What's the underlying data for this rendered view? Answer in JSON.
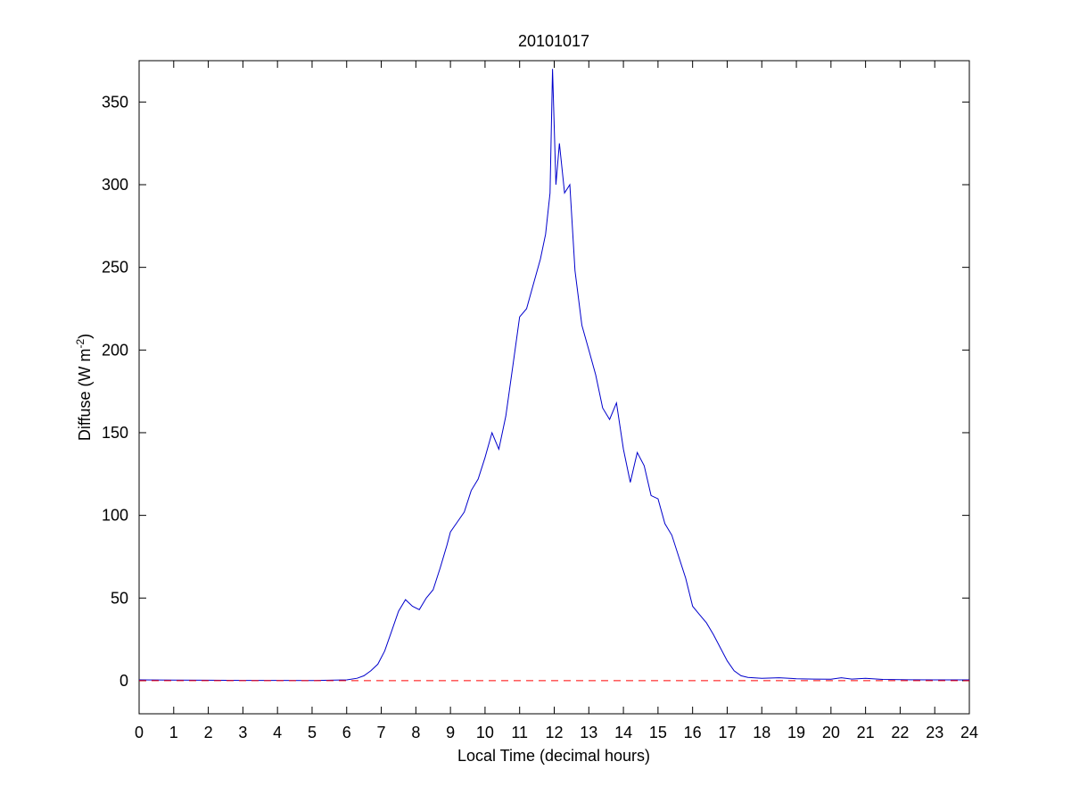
{
  "chart_data": {
    "type": "line",
    "title": "20101017",
    "xlabel": "Local Time (decimal hours)",
    "ylabel": "Diffuse (W m",
    "ylabel_superscript": "-2",
    "ylabel_suffix": ")",
    "xlim": [
      0,
      24
    ],
    "ylim": [
      -20,
      375
    ],
    "xticks": [
      0,
      1,
      2,
      3,
      4,
      5,
      6,
      7,
      8,
      9,
      10,
      11,
      12,
      13,
      14,
      15,
      16,
      17,
      18,
      19,
      20,
      21,
      22,
      23,
      24
    ],
    "yticks": [
      0,
      50,
      100,
      150,
      200,
      250,
      300,
      350
    ],
    "grid": false,
    "series": [
      {
        "color": "#0000cc",
        "style": "solid",
        "x": [
          0,
          1,
          2,
          3,
          4,
          5,
          5.5,
          6,
          6.3,
          6.5,
          6.7,
          6.9,
          7.1,
          7.3,
          7.5,
          7.7,
          7.9,
          8.1,
          8.3,
          8.5,
          8.7,
          8.9,
          9.0,
          9.2,
          9.4,
          9.6,
          9.8,
          10.0,
          10.2,
          10.4,
          10.6,
          10.8,
          11.0,
          11.2,
          11.4,
          11.6,
          11.75,
          11.88,
          11.95,
          12.05,
          12.15,
          12.3,
          12.45,
          12.6,
          12.8,
          13.0,
          13.2,
          13.4,
          13.6,
          13.8,
          14.0,
          14.2,
          14.4,
          14.6,
          14.8,
          15.0,
          15.2,
          15.4,
          15.6,
          15.8,
          16.0,
          16.2,
          16.4,
          16.6,
          16.8,
          17.0,
          17.2,
          17.4,
          17.6,
          18.0,
          18.5,
          19.0,
          19.5,
          20.0,
          20.3,
          20.6,
          21.0,
          21.5,
          22.0,
          23.0,
          24.0
        ],
        "values": [
          0.5,
          0.4,
          0.3,
          0.2,
          0.2,
          0.1,
          0.3,
          0.5,
          1.5,
          3,
          6,
          10,
          18,
          30,
          42,
          49,
          45,
          43,
          50,
          55,
          68,
          82,
          90,
          96,
          102,
          115,
          122,
          135,
          150,
          140,
          160,
          190,
          220,
          225,
          240,
          255,
          270,
          295,
          370,
          300,
          325,
          295,
          300,
          248,
          215,
          200,
          185,
          165,
          158,
          168,
          140,
          120,
          138,
          130,
          112,
          110,
          95,
          88,
          75,
          62,
          45,
          40,
          35,
          28,
          20,
          12,
          6,
          3,
          2,
          1.5,
          1.8,
          1.2,
          1.0,
          0.9,
          1.8,
          1.0,
          1.5,
          0.8,
          0.6,
          0.5,
          0.5
        ]
      },
      {
        "color": "#ff0000",
        "style": "dashed",
        "x": [
          0,
          24
        ],
        "values": [
          0,
          0
        ]
      }
    ]
  }
}
